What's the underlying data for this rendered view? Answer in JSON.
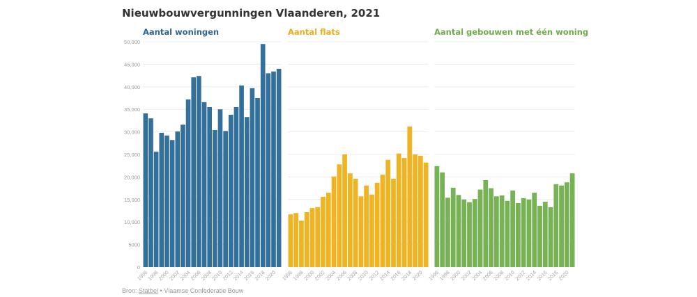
{
  "chart_data": {
    "type": "bar",
    "title": "Nieuwbouwvergunningen Vlaanderen, 2021",
    "categories": [
      1996,
      1997,
      1998,
      1999,
      2000,
      2001,
      2002,
      2003,
      2004,
      2005,
      2006,
      2007,
      2008,
      2009,
      2010,
      2011,
      2012,
      2013,
      2014,
      2015,
      2016,
      2017,
      2018,
      2019,
      2020,
      2021
    ],
    "x_tick_labels": [
      "1996",
      "1998",
      "2000",
      "2002",
      "2004",
      "2006",
      "2008",
      "2010",
      "2012",
      "2014",
      "2016",
      "2018",
      "2020"
    ],
    "y_tick_labels": [
      "0",
      "5000",
      "10,000",
      "15,000",
      "20,000",
      "25,000",
      "30,000",
      "35,000",
      "40,000",
      "45,000",
      "50,000"
    ],
    "ylim": [
      0,
      50000
    ],
    "grid": true,
    "series": [
      {
        "name": "Aantal woningen",
        "color": "#34709c",
        "title_color": "#2f6590",
        "values": [
          34100,
          33000,
          25600,
          29800,
          29200,
          28200,
          30100,
          31600,
          37200,
          42100,
          42400,
          36600,
          35500,
          30400,
          35000,
          30200,
          33800,
          35500,
          40300,
          33300,
          39700,
          37500,
          49500,
          43000,
          43400,
          44000
        ]
      },
      {
        "name": "Aantal flats",
        "color": "#eeb423",
        "title_color": "#e7ae1e",
        "values": [
          11700,
          12000,
          10300,
          12200,
          13100,
          13300,
          15600,
          16500,
          20100,
          22800,
          25000,
          20800,
          19600,
          15700,
          18100,
          16100,
          18700,
          20500,
          23800,
          19600,
          25200,
          24200,
          31200,
          25000,
          24700,
          23200
        ]
      },
      {
        "name": "Aantal gebouwen met één woning",
        "color": "#77b255",
        "title_color": "#6fab4c",
        "values": [
          22400,
          21000,
          15400,
          17600,
          16000,
          15000,
          14400,
          15100,
          17200,
          19300,
          17500,
          15700,
          15900,
          14700,
          17000,
          14200,
          15300,
          15000,
          16500,
          13600,
          14500,
          13300,
          18400,
          18100,
          18800,
          20800
        ]
      }
    ]
  },
  "footer": {
    "prefix": "Bron: ",
    "link": "Statbel",
    "rest": " • Vlaamse Confederatie Bouw"
  }
}
